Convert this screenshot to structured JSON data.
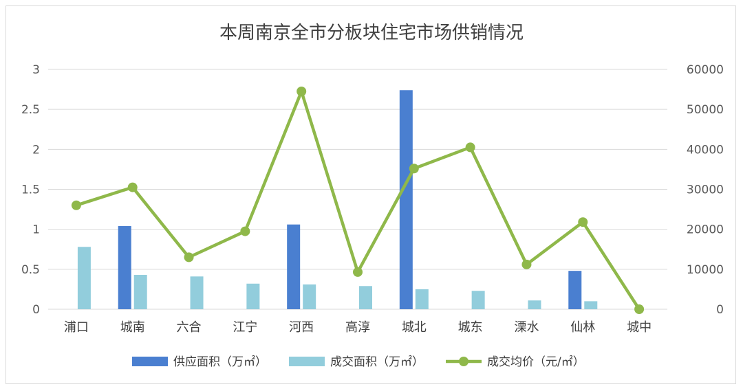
{
  "chart_data": {
    "type": "bar",
    "title": "本周南京全市分板块住宅市场供销情况",
    "categories": [
      "浦口",
      "城南",
      "六合",
      "江宁",
      "河西",
      "高淳",
      "城北",
      "城东",
      "溧水",
      "仙林",
      "城中"
    ],
    "series": [
      {
        "name": "供应面积（万㎡）",
        "type": "bar",
        "axis": "left",
        "color": "#4a7fd0",
        "values": [
          0,
          1.04,
          0,
          0,
          1.06,
          0,
          2.74,
          0,
          0,
          0.48,
          0
        ]
      },
      {
        "name": "成交面积（万㎡）",
        "type": "bar",
        "axis": "left",
        "color": "#92cddc",
        "values": [
          0.78,
          0.43,
          0.41,
          0.32,
          0.31,
          0.29,
          0.25,
          0.23,
          0.11,
          0.1,
          0
        ]
      },
      {
        "name": "成交均价（元/㎡）",
        "type": "line",
        "axis": "right",
        "color": "#8fb84a",
        "values": [
          26000,
          30500,
          13000,
          19500,
          54500,
          9300,
          35200,
          40500,
          11200,
          21800,
          0
        ]
      }
    ],
    "y_left": {
      "ylim": [
        0,
        3
      ],
      "ticks": [
        "0",
        "0.5",
        "1",
        "1.5",
        "2",
        "2.5",
        "3"
      ]
    },
    "y_right": {
      "ylim": [
        0,
        60000
      ],
      "ticks": [
        "0",
        "10000",
        "20000",
        "30000",
        "40000",
        "50000",
        "60000"
      ]
    },
    "grid": true,
    "legend": "bottom"
  }
}
